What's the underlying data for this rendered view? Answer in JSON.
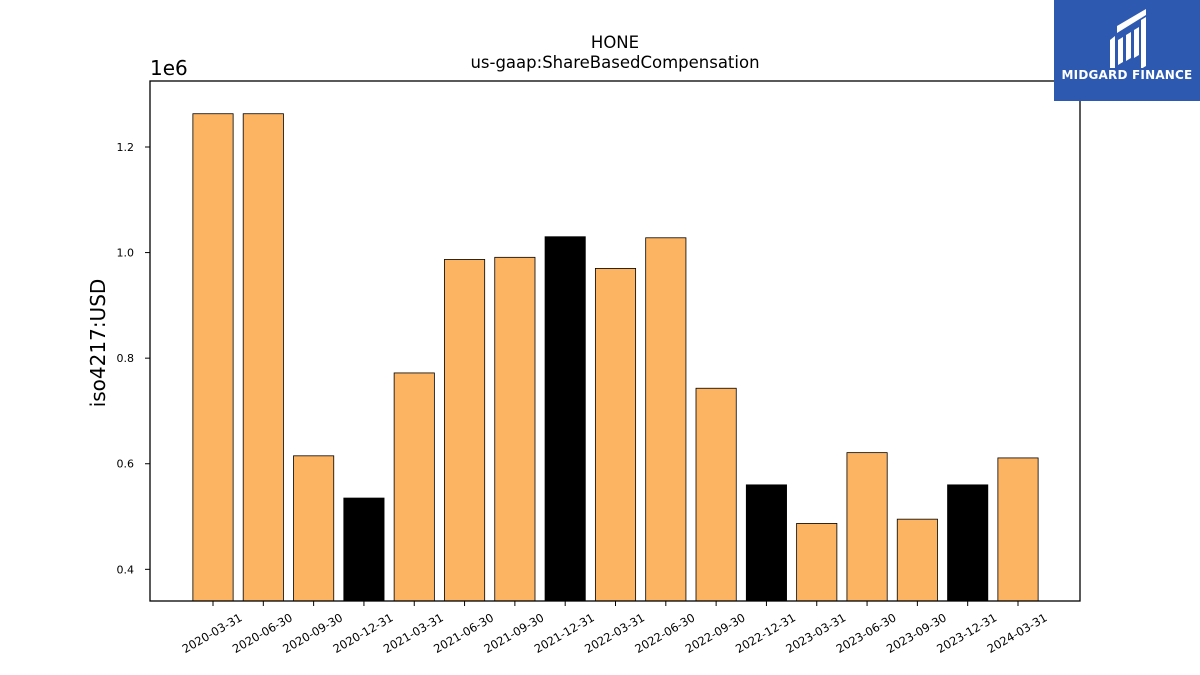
{
  "chart_data": {
    "type": "bar",
    "title": "HONE",
    "subtitle": "us-gaap:ShareBasedCompensation",
    "xlabel": "",
    "ylabel": "iso4217:USD",
    "y_scale_label": "1e6",
    "y_multiplier": 1000000,
    "ylim": [
      340000,
      1325000
    ],
    "yticks": [
      400000,
      600000,
      800000,
      1000000,
      1200000
    ],
    "ytick_labels": [
      "0.4",
      "0.6",
      "0.8",
      "1.0",
      "1.2"
    ],
    "grid": false,
    "categories": [
      "2020-03-31",
      "2020-06-30",
      "2020-09-30",
      "2020-12-31",
      "2021-03-31",
      "2021-06-30",
      "2021-09-30",
      "2021-12-31",
      "2022-03-31",
      "2022-06-30",
      "2022-09-30",
      "2022-12-31",
      "2023-03-31",
      "2023-06-30",
      "2023-09-30",
      "2023-12-31",
      "2024-03-31"
    ],
    "values": [
      1263000,
      1263000,
      615000,
      535000,
      772000,
      987000,
      991000,
      1030000,
      970000,
      1028000,
      743000,
      560000,
      487000,
      621000,
      495000,
      560000,
      611000
    ],
    "bar_colors": [
      "#fdb462",
      "#fdb462",
      "#fdb462",
      "#000000",
      "#fdb462",
      "#fdb462",
      "#fdb462",
      "#000000",
      "#fdb462",
      "#fdb462",
      "#fdb462",
      "#000000",
      "#fdb462",
      "#fdb462",
      "#fdb462",
      "#000000",
      "#fdb462"
    ]
  },
  "logo": {
    "text": "MIDGARD FINANCE",
    "icon": "midgard-logo-icon",
    "background": "#2d5ab0"
  }
}
